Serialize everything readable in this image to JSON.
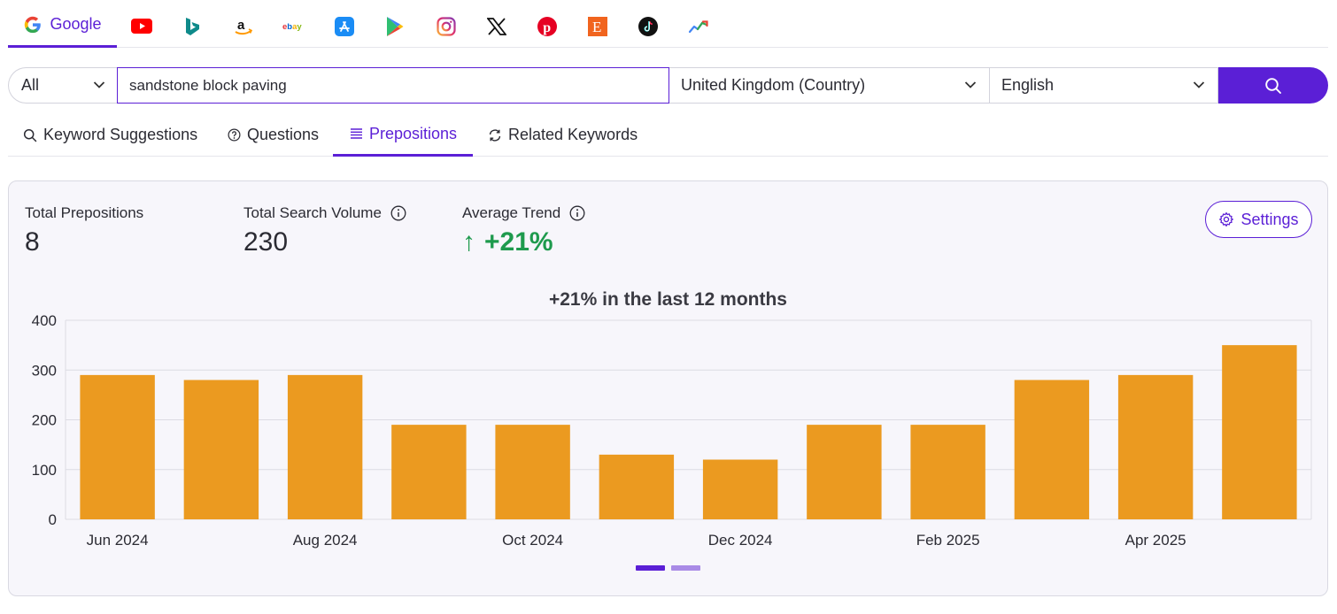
{
  "platforms": {
    "active": "Google",
    "icons": [
      "google-icon",
      "youtube-icon",
      "bing-icon",
      "amazon-icon",
      "ebay-icon",
      "app-store-icon",
      "google-play-icon",
      "instagram-icon",
      "x-icon",
      "pinterest-icon",
      "etsy-icon",
      "tiktok-icon",
      "trends-icon"
    ]
  },
  "search": {
    "scope": "All",
    "query": "sandstone block paving",
    "country": "United Kingdom (Country)",
    "language": "English"
  },
  "tabs": [
    {
      "label": "Keyword Suggestions",
      "icon": "search-icon"
    },
    {
      "label": "Questions",
      "icon": "question-icon"
    },
    {
      "label": "Prepositions",
      "icon": "list-icon",
      "active": true
    },
    {
      "label": "Related Keywords",
      "icon": "refresh-icon"
    }
  ],
  "stats": {
    "total_prepositions_label": "Total Prepositions",
    "total_prepositions": "8",
    "total_volume_label": "Total Search Volume",
    "total_volume": "230",
    "avg_trend_label": "Average Trend",
    "avg_trend_arrow": "↑",
    "avg_trend": "+21%"
  },
  "settings_label": "Settings",
  "colors": {
    "accent": "#5b1fd6",
    "bar": "#eb9a20",
    "positive": "#1e9a4d",
    "dot_inactive": "#a98be6"
  },
  "chart_data": {
    "type": "bar",
    "title": "+21% in the last 12 months",
    "categories": [
      "Jun 2024",
      "Jul 2024",
      "Aug 2024",
      "Sep 2024",
      "Oct 2024",
      "Nov 2024",
      "Dec 2024",
      "Jan 2025",
      "Feb 2025",
      "Mar 2025",
      "Apr 2025",
      "May 2025"
    ],
    "x_tick_labels": [
      "Jun 2024",
      "",
      "Aug 2024",
      "",
      "Oct 2024",
      "",
      "Dec 2024",
      "",
      "Feb 2025",
      "",
      "Apr 2025",
      ""
    ],
    "values": [
      290,
      280,
      290,
      190,
      190,
      130,
      120,
      190,
      190,
      280,
      290,
      350
    ],
    "ylim": [
      0,
      400
    ],
    "yticks": [
      0,
      100,
      200,
      300,
      400
    ],
    "xlabel": "",
    "ylabel": "",
    "grid": true
  },
  "pagination": {
    "pages": 2,
    "active": 1
  }
}
